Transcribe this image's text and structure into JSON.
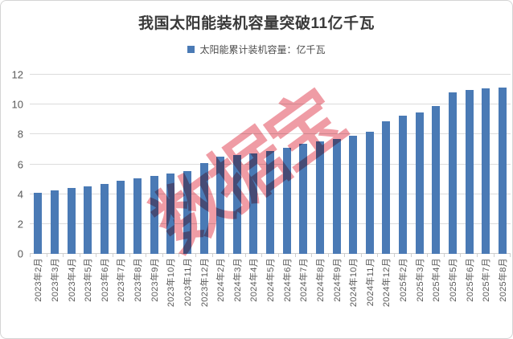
{
  "card": {
    "background": "#ffffff",
    "border_color": "#d4d4d4"
  },
  "chart_data": {
    "type": "bar",
    "title": "我国太阳能装机容量突破11亿千瓦",
    "legend": "太阳能累计装机容量：亿千瓦",
    "legend_position": "top-center",
    "categories": [
      "2023年2月",
      "2023年3月",
      "2023年4月",
      "2023年5月",
      "2023年6月",
      "2023年7月",
      "2023年8月",
      "2023年9月",
      "2023年10月",
      "2023年11月",
      "2023年12月",
      "2024年2月",
      "2024年3月",
      "2024年4月",
      "2024年5月",
      "2024年6月",
      "2024年7月",
      "2024年8月",
      "2024年9月",
      "2024年10月",
      "2024年11月",
      "2024年12月",
      "2025年2月",
      "2025年3月",
      "2025年4月",
      "2025年5月",
      "2025年6月",
      "2025年7月",
      "2025年8月"
    ],
    "values": [
      4.1,
      4.25,
      4.4,
      4.5,
      4.7,
      4.9,
      5.05,
      5.2,
      5.36,
      5.56,
      6.09,
      6.5,
      6.6,
      6.73,
      6.91,
      7.13,
      7.35,
      7.52,
      7.72,
      7.93,
      8.18,
      8.87,
      9.26,
      9.46,
      9.9,
      10.8,
      11.0,
      11.1,
      11.16
    ],
    "xlabel": "",
    "ylabel": "",
    "ylim": [
      0,
      12
    ],
    "yticks": [
      0,
      2,
      4,
      6,
      8,
      10,
      12
    ],
    "grid": "horizontal-only",
    "x_tick_rotation_deg": -90,
    "bar_color": "#4a7ab5",
    "gridline_color": "#dcdcdc",
    "axis_color": "#cfcfcf",
    "tick_label_color": "#595959",
    "title_color": "#3a3a3a",
    "watermark": {
      "text": "数据宝",
      "color": "#ec8b95",
      "rotation_deg": -36
    }
  }
}
